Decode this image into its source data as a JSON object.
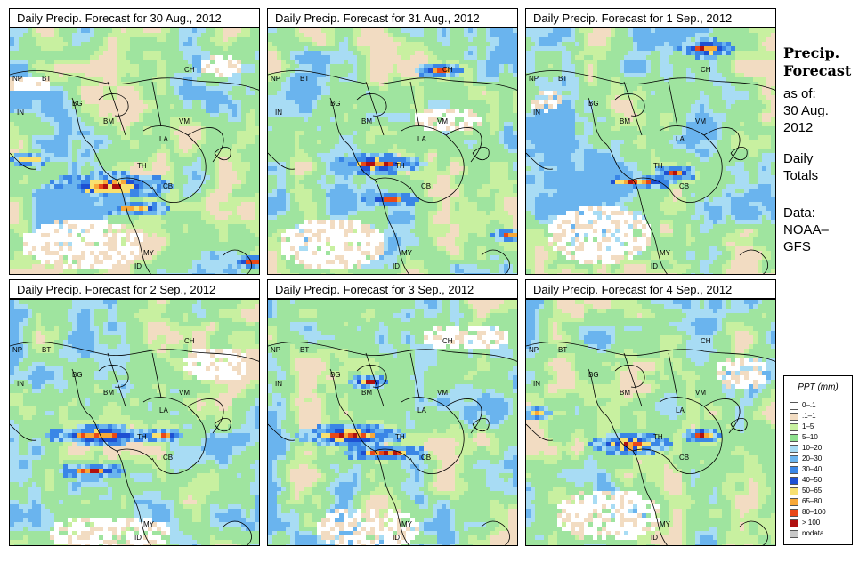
{
  "panels": [
    {
      "title": "Daily Precip. Forecast for  30 Aug., 2012"
    },
    {
      "title": "Daily Precip. Forecast for  31 Aug., 2012"
    },
    {
      "title": "Daily Precip. Forecast for  1 Sep., 2012"
    },
    {
      "title": "Daily Precip. Forecast for  2 Sep., 2012"
    },
    {
      "title": "Daily Precip. Forecast for  3 Sep., 2012"
    },
    {
      "title": "Daily Precip. Forecast for  4 Sep., 2012"
    }
  ],
  "region_labels": [
    "NP",
    "BT",
    "BG",
    "IN",
    "BM",
    "CH",
    "VM",
    "LA",
    "TH",
    "CB",
    "MY",
    "ID"
  ],
  "sidebar": {
    "title_line1": "Precip.",
    "title_line2": "Forecast",
    "asof_line1": "as of:",
    "asof_line2": "30 Aug.",
    "asof_line3": "2012",
    "totals_line1": "Daily",
    "totals_line2": "Totals",
    "data_line1": "Data:",
    "data_line2": "NOAA–",
    "data_line3": "GFS"
  },
  "legend": {
    "title": "PPT (mm)",
    "items": [
      {
        "label": "0–.1",
        "color": "#ffffff"
      },
      {
        "label": ".1–1",
        "color": "#f2dcc2"
      },
      {
        "label": "1–5",
        "color": "#c8f0a0"
      },
      {
        "label": "5–10",
        "color": "#8ee08e"
      },
      {
        "label": "10–20",
        "color": "#a8dcf4"
      },
      {
        "label": "20–30",
        "color": "#6ab4ee"
      },
      {
        "label": "30–40",
        "color": "#3a86e6"
      },
      {
        "label": "40–50",
        "color": "#1e50d2"
      },
      {
        "label": "50–65",
        "color": "#f8e070"
      },
      {
        "label": "65–80",
        "color": "#f8a838"
      },
      {
        "label": "80–100",
        "color": "#e84818"
      },
      {
        "label": "> 100",
        "color": "#b01010"
      },
      {
        "label": "nodata",
        "color": "#c8c8c8"
      }
    ]
  }
}
